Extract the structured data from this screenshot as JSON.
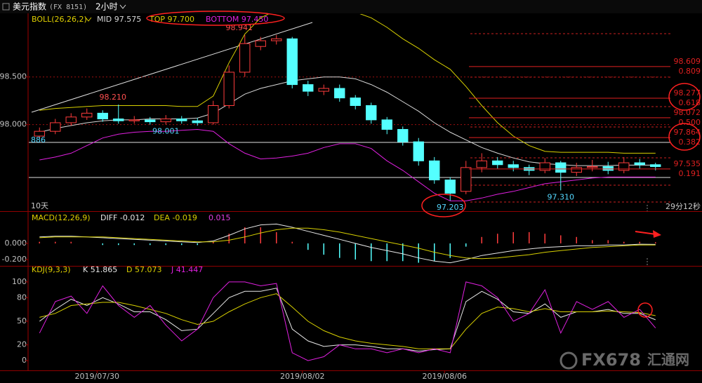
{
  "header": {
    "title": "美元指数",
    "code": "(FX 8151)",
    "period": "2小时"
  },
  "watermark": {
    "brand": "FX678",
    "site": "汇通网"
  },
  "chart_data": [
    {
      "type": "candlestick",
      "title": "BOLL(26,26,2)",
      "categories": [
        null,
        null,
        null,
        null,
        "2019/07/30",
        null,
        null,
        null,
        null,
        null,
        null,
        null,
        null,
        null,
        null,
        null,
        null,
        "2019/08/02",
        null,
        null,
        null,
        null,
        null,
        null,
        null,
        null,
        "2019/08/06",
        null,
        null,
        null,
        null,
        null,
        null,
        null,
        null,
        null,
        null,
        null,
        null,
        null
      ],
      "open": [
        97.88,
        97.93,
        98.02,
        98.08,
        98.12,
        98.06,
        98.04,
        98.05,
        98.03,
        98.06,
        98.04,
        98.02,
        98.2,
        98.55,
        98.82,
        98.88,
        98.9,
        98.42,
        98.35,
        98.38,
        98.28,
        98.2,
        98.05,
        97.95,
        97.82,
        97.62,
        97.42,
        97.3,
        97.55,
        97.62,
        97.58,
        97.55,
        97.52,
        97.6,
        97.5,
        97.55,
        97.56,
        97.52,
        97.6,
        97.58
      ],
      "high": [
        97.97,
        98.06,
        98.12,
        98.17,
        98.15,
        98.21,
        98.09,
        98.08,
        98.1,
        98.09,
        98.07,
        98.25,
        98.62,
        98.941,
        98.92,
        98.94,
        98.92,
        98.46,
        98.42,
        98.42,
        98.31,
        98.23,
        98.08,
        97.98,
        97.86,
        97.66,
        97.45,
        97.62,
        97.7,
        97.66,
        97.62,
        97.58,
        97.65,
        97.62,
        97.6,
        97.63,
        97.61,
        97.66,
        97.64,
        97.6
      ],
      "low": [
        97.85,
        97.9,
        97.99,
        98.05,
        98.03,
        98.01,
        98.01,
        98.0,
        98.001,
        98.01,
        97.99,
        98.0,
        98.17,
        98.5,
        98.78,
        98.84,
        98.38,
        98.3,
        98.31,
        98.24,
        98.16,
        98.01,
        97.9,
        97.78,
        97.57,
        97.38,
        97.203,
        97.27,
        97.5,
        97.54,
        97.51,
        97.47,
        97.49,
        97.31,
        97.46,
        97.51,
        97.48,
        97.49,
        97.54,
        97.52
      ],
      "close": [
        97.93,
        98.02,
        98.08,
        98.12,
        98.06,
        98.04,
        98.05,
        98.03,
        98.06,
        98.04,
        98.02,
        98.2,
        98.55,
        98.85,
        98.88,
        98.9,
        98.42,
        98.35,
        98.38,
        98.28,
        98.2,
        98.05,
        97.95,
        97.82,
        97.62,
        97.42,
        97.28,
        97.55,
        97.62,
        97.58,
        97.55,
        97.52,
        97.6,
        97.5,
        97.55,
        97.56,
        97.52,
        97.6,
        97.58,
        97.56
      ],
      "high_labels": [
        null,
        null,
        null,
        null,
        null,
        "98.210",
        null,
        null,
        null,
        null,
        null,
        null,
        null,
        "98.941",
        null,
        null,
        null,
        null,
        null,
        null,
        null,
        null,
        null,
        null,
        null,
        null,
        null,
        null,
        null,
        null,
        null,
        null,
        null,
        null,
        null,
        null,
        null,
        null,
        null,
        null
      ],
      "low_labels": [
        null,
        null,
        null,
        null,
        null,
        null,
        null,
        null,
        "98.001",
        null,
        null,
        null,
        null,
        null,
        null,
        null,
        null,
        null,
        null,
        null,
        null,
        null,
        null,
        null,
        null,
        null,
        "97.203",
        null,
        null,
        null,
        null,
        null,
        null,
        "97.310",
        null,
        null,
        null,
        null,
        null,
        null
      ],
      "up_color": "#ff3c3c",
      "down_color": "#54ffff",
      "series": [
        {
          "name": "MID 97.575",
          "color": "#d8d8d8",
          "values": [
            97.92,
            97.96,
            97.99,
            98.02,
            98.04,
            98.05,
            98.05,
            98.06,
            98.06,
            98.06,
            98.07,
            98.12,
            98.22,
            98.32,
            98.38,
            98.42,
            98.46,
            98.48,
            98.5,
            98.5,
            98.48,
            98.42,
            98.34,
            98.24,
            98.14,
            98.02,
            97.92,
            97.84,
            97.76,
            97.7,
            97.65,
            97.61,
            97.59,
            97.58,
            97.57,
            97.57,
            97.57,
            97.575,
            97.575,
            97.575
          ]
        },
        {
          "name": "TOP 97.700",
          "color": "#d8d000",
          "values": [
            98.15,
            98.17,
            98.18,
            98.19,
            98.2,
            98.2,
            98.2,
            98.2,
            98.2,
            98.19,
            98.19,
            98.3,
            98.65,
            98.95,
            99.12,
            99.2,
            99.25,
            99.25,
            99.23,
            99.2,
            99.18,
            99.12,
            99.02,
            98.9,
            98.8,
            98.68,
            98.58,
            98.4,
            98.2,
            98.02,
            97.88,
            97.78,
            97.72,
            97.71,
            97.71,
            97.71,
            97.71,
            97.7,
            97.7,
            97.7
          ]
        },
        {
          "name": "BOTTOM 97.450",
          "color": "#e020e0",
          "values": [
            97.63,
            97.66,
            97.7,
            97.78,
            97.86,
            97.9,
            97.92,
            97.93,
            97.93,
            97.94,
            97.95,
            97.93,
            97.8,
            97.7,
            97.64,
            97.65,
            97.67,
            97.7,
            97.76,
            97.8,
            97.8,
            97.75,
            97.62,
            97.52,
            97.4,
            97.28,
            97.2,
            97.2,
            97.23,
            97.27,
            97.3,
            97.34,
            97.38,
            97.4,
            97.42,
            97.44,
            97.45,
            97.45,
            97.45,
            97.45
          ]
        }
      ],
      "ylim": [
        97.1,
        99.16
      ],
      "yticks": [
        {
          "value": 98.5,
          "label": "98.500"
        },
        {
          "value": 98,
          "label": "98.000"
        }
      ],
      "grid": true,
      "fib_levels": [
        98.609,
        98.277,
        98.072,
        97.864,
        97.535
      ],
      "fib_ratios": [
        "0.809",
        "0.618",
        "0.500",
        "0.382",
        "0.191"
      ],
      "fib_color": "#e02020",
      "notes": {
        "period_count": "10天",
        "countdown": "29分12秒",
        "left_level": "886"
      }
    },
    {
      "type": "macd",
      "title": "MACD(12,26,9)",
      "series": [
        {
          "name": "DIFF -0.012",
          "color": "#e8e8e8",
          "values": [
            0.08,
            0.09,
            0.09,
            0.08,
            0.07,
            0.06,
            0.05,
            0.04,
            0.03,
            0.02,
            0.01,
            0.03,
            0.1,
            0.18,
            0.23,
            0.24,
            0.2,
            0.15,
            0.1,
            0.05,
            0.0,
            -0.05,
            -0.09,
            -0.13,
            -0.18,
            -0.22,
            -0.24,
            -0.2,
            -0.15,
            -0.12,
            -0.09,
            -0.07,
            -0.05,
            -0.04,
            -0.03,
            -0.03,
            -0.02,
            -0.02,
            -0.01,
            -0.012
          ]
        },
        {
          "name": "DEA -0.019",
          "color": "#d8d000",
          "values": [
            0.07,
            0.08,
            0.08,
            0.08,
            0.08,
            0.07,
            0.06,
            0.05,
            0.04,
            0.03,
            0.02,
            0.02,
            0.04,
            0.08,
            0.13,
            0.17,
            0.19,
            0.19,
            0.17,
            0.14,
            0.1,
            0.06,
            0.02,
            -0.02,
            -0.06,
            -0.11,
            -0.15,
            -0.18,
            -0.19,
            -0.18,
            -0.16,
            -0.14,
            -0.11,
            -0.09,
            -0.07,
            -0.05,
            -0.04,
            -0.03,
            -0.02,
            -0.019
          ]
        },
        {
          "name": "0.015",
          "color": "#e040e0",
          "kind": "bar",
          "values": [
            0.02,
            0.02,
            0.02,
            0,
            -0.02,
            -0.02,
            -0.02,
            -0.02,
            -0.02,
            -0.02,
            -0.02,
            0.02,
            0.12,
            0.2,
            0.2,
            0.14,
            0.02,
            -0.08,
            -0.14,
            -0.18,
            -0.2,
            -0.22,
            -0.22,
            -0.22,
            -0.24,
            -0.22,
            -0.18,
            -0.04,
            0.08,
            0.12,
            0.14,
            0.14,
            0.12,
            0.1,
            0.08,
            0.04,
            0.04,
            0.02,
            0.02,
            0.015
          ]
        }
      ],
      "up_color": "#ff3c3c",
      "down_color": "#54ffff",
      "ylim": [
        -0.27,
        0.383
      ],
      "yticks": [
        {
          "value": 0,
          "label": "0.000"
        },
        {
          "value": -0.2,
          "label": "-0.200"
        }
      ]
    },
    {
      "type": "line",
      "title": "KDJ(9,3,3)",
      "series": [
        {
          "name": "K 51.865",
          "color": "#e8e8e8",
          "values": [
            50,
            65,
            78,
            70,
            80,
            72,
            62,
            62,
            52,
            38,
            40,
            60,
            80,
            88,
            88,
            92,
            40,
            25,
            18,
            20,
            20,
            18,
            15,
            15,
            12,
            14,
            15,
            75,
            88,
            78,
            62,
            60,
            72,
            55,
            62,
            62,
            65,
            60,
            60,
            51.865
          ]
        },
        {
          "name": "D 57.073",
          "color": "#d8d000",
          "values": [
            55,
            60,
            70,
            72,
            74,
            74,
            70,
            65,
            60,
            52,
            46,
            50,
            62,
            72,
            80,
            85,
            68,
            50,
            38,
            30,
            25,
            22,
            20,
            18,
            15,
            15,
            15,
            40,
            60,
            68,
            66,
            62,
            66,
            62,
            62,
            62,
            63,
            62,
            61,
            57.073
          ]
        },
        {
          "name": "J 41.447",
          "color": "#e020e0",
          "values": [
            35,
            75,
            82,
            60,
            95,
            70,
            55,
            70,
            45,
            25,
            40,
            80,
            100,
            100,
            95,
            98,
            10,
            0,
            5,
            20,
            15,
            15,
            10,
            15,
            10,
            15,
            10,
            100,
            95,
            80,
            50,
            60,
            90,
            35,
            75,
            65,
            75,
            55,
            65,
            41.447
          ]
        }
      ],
      "ylim": [
        -12.4,
        118.6
      ],
      "yticks": [
        100,
        80,
        50,
        20,
        0
      ]
    }
  ]
}
